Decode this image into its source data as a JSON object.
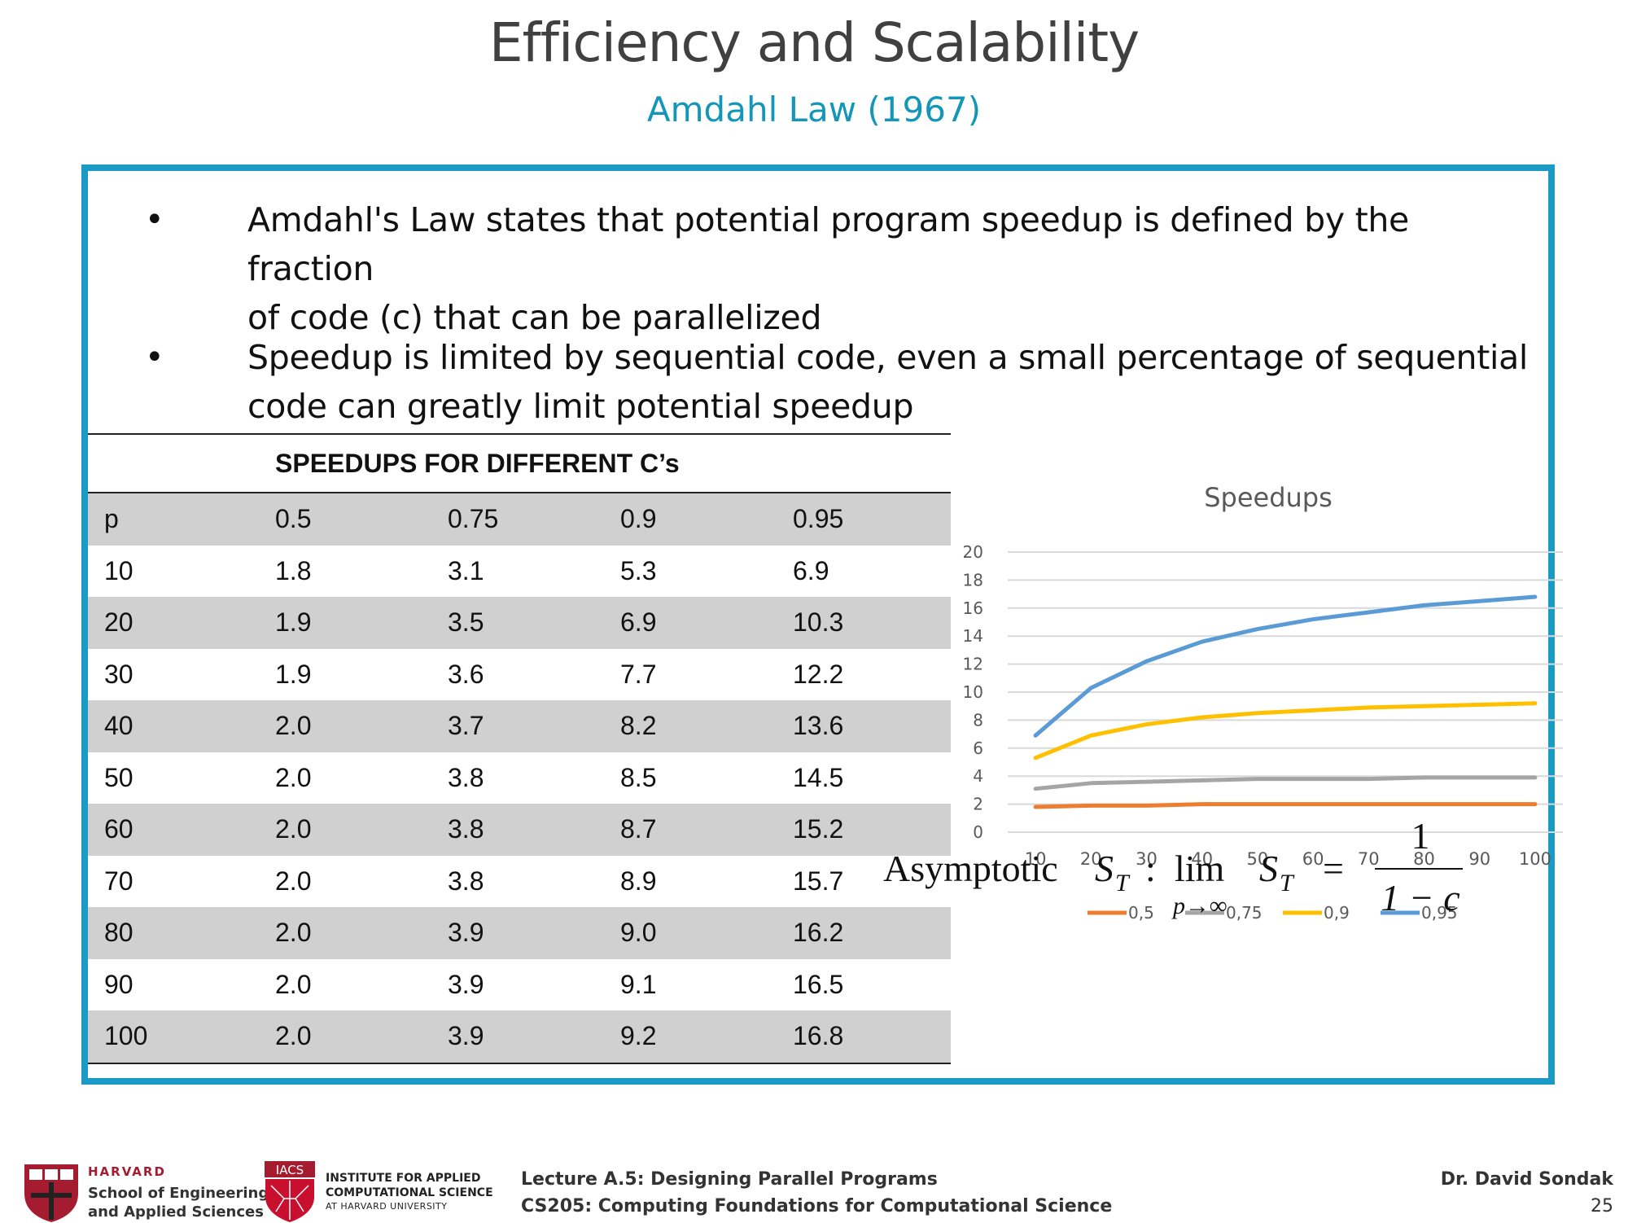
{
  "slide": {
    "title": "Efficiency and Scalability",
    "subtitle": "Amdahl Law (1967)"
  },
  "bullets": [
    {
      "marker": "•",
      "line1": "Amdahl's Law states that potential program speedup is defined by the fraction",
      "line2": "of code (c) that can be parallelized"
    },
    {
      "marker": "•",
      "line1": "Speedup is limited by sequential code, even a small percentage of sequential",
      "line2": "code can greatly limit potential speedup"
    }
  ],
  "table": {
    "caption": "SPEEDUPS FOR DIFFERENT C’s",
    "header": [
      "p",
      "0.5",
      "0.75",
      "0.9",
      "0.95"
    ],
    "rows": [
      [
        "10",
        "1.8",
        "3.1",
        "5.3",
        "6.9"
      ],
      [
        "20",
        "1.9",
        "3.5",
        "6.9",
        "10.3"
      ],
      [
        "30",
        "1.9",
        "3.6",
        "7.7",
        "12.2"
      ],
      [
        "40",
        "2.0",
        "3.7",
        "8.2",
        "13.6"
      ],
      [
        "50",
        "2.0",
        "3.8",
        "8.5",
        "14.5"
      ],
      [
        "60",
        "2.0",
        "3.8",
        "8.7",
        "15.2"
      ],
      [
        "70",
        "2.0",
        "3.8",
        "8.9",
        "15.7"
      ],
      [
        "80",
        "2.0",
        "3.9",
        "9.0",
        "16.2"
      ],
      [
        "90",
        "2.0",
        "3.9",
        "9.1",
        "16.5"
      ],
      [
        "100",
        "2.0",
        "3.9",
        "9.2",
        "16.8"
      ]
    ]
  },
  "chart_data": {
    "type": "line",
    "title": "Speedups",
    "xlabel": "",
    "ylabel": "",
    "categories": [
      "10",
      "20",
      "30",
      "40",
      "50",
      "60",
      "70",
      "80",
      "90",
      "100"
    ],
    "ylim": [
      0,
      20
    ],
    "yticks": [
      "0",
      "2",
      "4",
      "6",
      "8",
      "10",
      "12",
      "14",
      "16",
      "18",
      "20"
    ],
    "grid": true,
    "legend": "bottom",
    "series": [
      {
        "name": "0,5",
        "color": "#ed7d31",
        "values": [
          1.8,
          1.9,
          1.9,
          2.0,
          2.0,
          2.0,
          2.0,
          2.0,
          2.0,
          2.0
        ]
      },
      {
        "name": "0,75",
        "color": "#a5a5a5",
        "values": [
          3.1,
          3.5,
          3.6,
          3.7,
          3.8,
          3.8,
          3.8,
          3.9,
          3.9,
          3.9
        ]
      },
      {
        "name": "0,9",
        "color": "#ffc000",
        "values": [
          5.3,
          6.9,
          7.7,
          8.2,
          8.5,
          8.7,
          8.9,
          9.0,
          9.1,
          9.2
        ]
      },
      {
        "name": "0,95",
        "color": "#5b9bd5",
        "values": [
          6.9,
          10.3,
          12.2,
          13.6,
          14.5,
          15.2,
          15.7,
          16.2,
          16.5,
          16.8
        ]
      }
    ]
  },
  "formula": {
    "word": "Asymptotic",
    "lhs_var": "S",
    "lhs_sub": "T",
    "colon": ":",
    "lim": "lim",
    "lim_sub": "p→∞",
    "rhs_var": "S",
    "rhs_sub": "T",
    "equals": "=",
    "numerator": "1",
    "denominator": "1 − c"
  },
  "footer": {
    "seas_harvard": "HARVARD",
    "seas_line1": "School of Engineering",
    "seas_line2": "and Applied Sciences",
    "iacs_badge": "IACS",
    "iacs_line1": "INSTITUTE FOR APPLIED",
    "iacs_line2": "COMPUTATIONAL SCIENCE",
    "iacs_line3": "AT HARVARD UNIVERSITY",
    "lecture": "Lecture A.5: Designing Parallel Programs",
    "course": "CS205: Computing Foundations for Computational Science",
    "author": "Dr. David Sondak",
    "page_number": "25"
  },
  "colors": {
    "title": "#404040",
    "accent": "#1a9ac4",
    "table_shade": "#d0d0d0",
    "harvard_crimson": "#a51c30"
  }
}
